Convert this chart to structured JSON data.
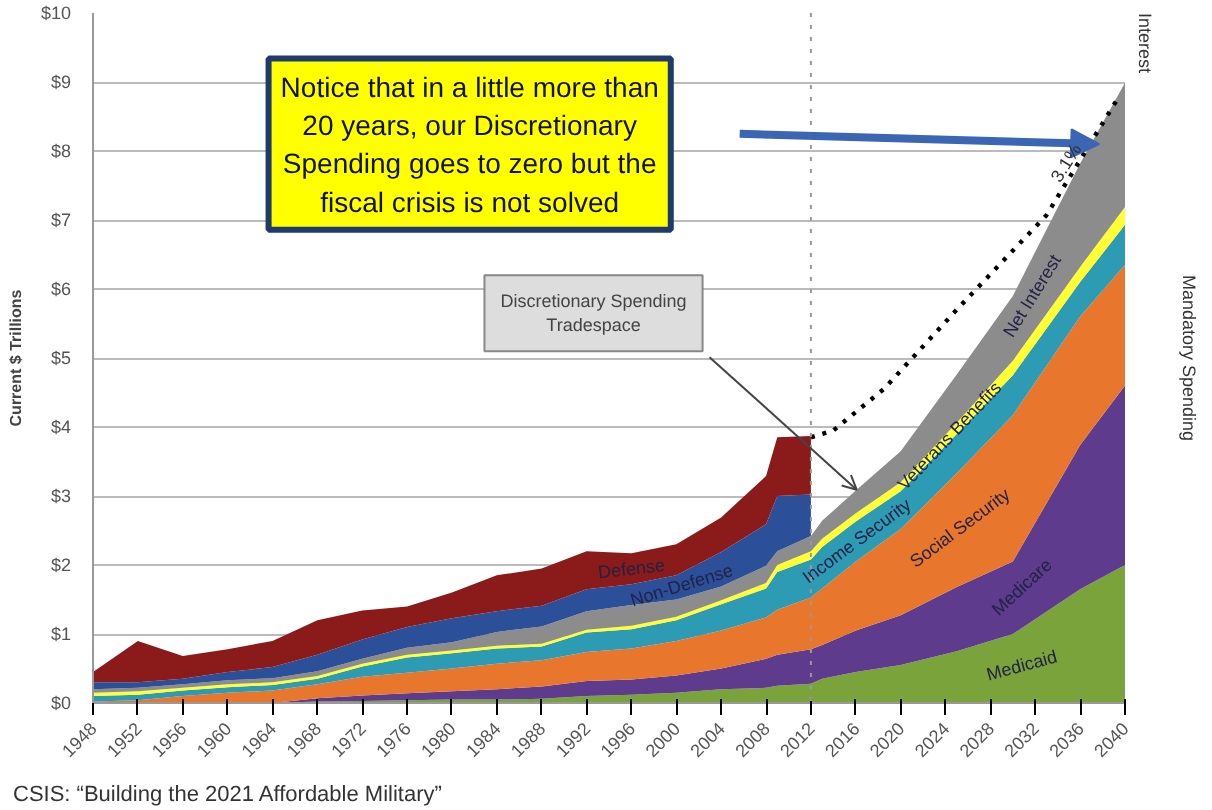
{
  "chart_data": {
    "type": "area",
    "stacked": true,
    "ylabel": "Current $ Trillions",
    "x": [
      1948,
      1952,
      1956,
      1960,
      1964,
      1968,
      1972,
      1976,
      1980,
      1984,
      1988,
      1992,
      1996,
      2000,
      2004,
      2008,
      2009,
      2012,
      2013,
      2016,
      2020,
      2025,
      2030,
      2036,
      2040
    ],
    "series": [
      {
        "name": "Medicaid",
        "color": "#7aa33c",
        "values": [
          0,
          0,
          0,
          0,
          0,
          0.02,
          0.03,
          0.04,
          0.05,
          0.05,
          0.06,
          0.1,
          0.12,
          0.15,
          0.2,
          0.22,
          0.25,
          0.28,
          0.35,
          0.45,
          0.55,
          0.75,
          1.0,
          1.65,
          2.0
        ]
      },
      {
        "name": "Medicare",
        "color": "#5e3b8c",
        "values": [
          0,
          0,
          0,
          0,
          0,
          0.05,
          0.08,
          0.1,
          0.12,
          0.15,
          0.18,
          0.22,
          0.22,
          0.25,
          0.3,
          0.42,
          0.45,
          0.5,
          0.49,
          0.6,
          0.72,
          0.93,
          1.05,
          2.09,
          2.6
        ]
      },
      {
        "name": "Social Security",
        "color": "#e8762c",
        "values": [
          0.02,
          0.04,
          0.1,
          0.15,
          0.18,
          0.2,
          0.27,
          0.3,
          0.33,
          0.37,
          0.38,
          0.42,
          0.45,
          0.5,
          0.55,
          0.6,
          0.65,
          0.75,
          0.82,
          1.0,
          1.25,
          1.65,
          2.12,
          1.86,
          1.75
        ]
      },
      {
        "name": "Income Security",
        "color": "#2e9bb5",
        "values": [
          0.08,
          0.08,
          0.08,
          0.08,
          0.08,
          0.08,
          0.15,
          0.22,
          0.22,
          0.22,
          0.2,
          0.28,
          0.28,
          0.3,
          0.38,
          0.42,
          0.55,
          0.55,
          0.6,
          0.58,
          0.55,
          0.57,
          0.58,
          0.5,
          0.58
        ]
      },
      {
        "name": "Veterans Benefits",
        "color": "#ffff33",
        "values": [
          0.05,
          0.05,
          0.04,
          0.04,
          0.04,
          0.04,
          0.04,
          0.04,
          0.04,
          0.04,
          0.04,
          0.04,
          0.05,
          0.05,
          0.06,
          0.08,
          0.1,
          0.12,
          0.12,
          0.12,
          0.13,
          0.16,
          0.21,
          0.22,
          0.26
        ]
      },
      {
        "name": "Net Interest",
        "color": "#8c8c8c",
        "values": [
          0.05,
          0.05,
          0.05,
          0.06,
          0.06,
          0.07,
          0.07,
          0.1,
          0.12,
          0.2,
          0.25,
          0.27,
          0.3,
          0.25,
          0.2,
          0.25,
          0.2,
          0.22,
          0.26,
          0.33,
          0.45,
          0.7,
          0.94,
          1.5,
          1.8
        ]
      },
      {
        "name": "Non-Defense",
        "color": "#2c4f9a",
        "values": [
          0.1,
          0.08,
          0.08,
          0.12,
          0.16,
          0.24,
          0.28,
          0.3,
          0.35,
          0.3,
          0.3,
          0.32,
          0.3,
          0.35,
          0.5,
          0.6,
          0.8,
          0.6,
          null,
          null,
          null,
          null,
          null,
          null,
          null
        ]
      },
      {
        "name": "Defense",
        "color": "#8b1a1a",
        "values": [
          0.15,
          0.6,
          0.33,
          0.33,
          0.38,
          0.5,
          0.42,
          0.3,
          0.37,
          0.52,
          0.54,
          0.55,
          0.45,
          0.45,
          0.5,
          0.7,
          0.85,
          0.85,
          null,
          null,
          null,
          null,
          null,
          null,
          null
        ]
      },
      {
        "type": "line",
        "color": "#000000",
        "line_style": "dotted",
        "x": [
          2012,
          2014,
          2018.5,
          2025,
          2033,
          2039.5
        ],
        "values": [
          3.85,
          3.95,
          4.55,
          5.7,
          7.07,
          8.8
        ]
      }
    ],
    "xlim": [
      1948,
      2040
    ],
    "xticks": [
      1948,
      1952,
      1956,
      1960,
      1964,
      1968,
      1972,
      1976,
      1980,
      1984,
      1988,
      1992,
      1996,
      2000,
      2004,
      2008,
      2012,
      2016,
      2020,
      2024,
      2028,
      2032,
      2036,
      2040
    ],
    "ylim": [
      0,
      10
    ],
    "yticks": [
      {
        "value": 0,
        "label": "$0"
      },
      {
        "value": 1,
        "label": "$1"
      },
      {
        "value": 2,
        "label": "$2"
      },
      {
        "value": 3,
        "label": "$3"
      },
      {
        "value": 4,
        "label": "$4"
      },
      {
        "value": 5,
        "label": "$5"
      },
      {
        "value": 6,
        "label": "$6"
      },
      {
        "value": 7,
        "label": "$7"
      },
      {
        "value": 8,
        "label": "$8"
      },
      {
        "value": 9,
        "label": "$9"
      },
      {
        "value": 10,
        "label": "$10"
      }
    ],
    "grid": "y",
    "ref_lines": [
      {
        "axis": "x",
        "value": 2012,
        "color": "#999999",
        "line_style": "dotted"
      }
    ],
    "annotations": [
      "Notice that in a little more than\n20 years, our Discretionary\nSpending goes to zero but the\nfiscal crisis is not solved",
      "Discretionary Spending\nTradespace",
      {
        "text": "3.1%",
        "x": 2035.5,
        "y": 7.75
      },
      "Interest",
      "Mandatory Spending",
      "CSIS: “Building the 2021 Affordable Military”"
    ]
  }
}
